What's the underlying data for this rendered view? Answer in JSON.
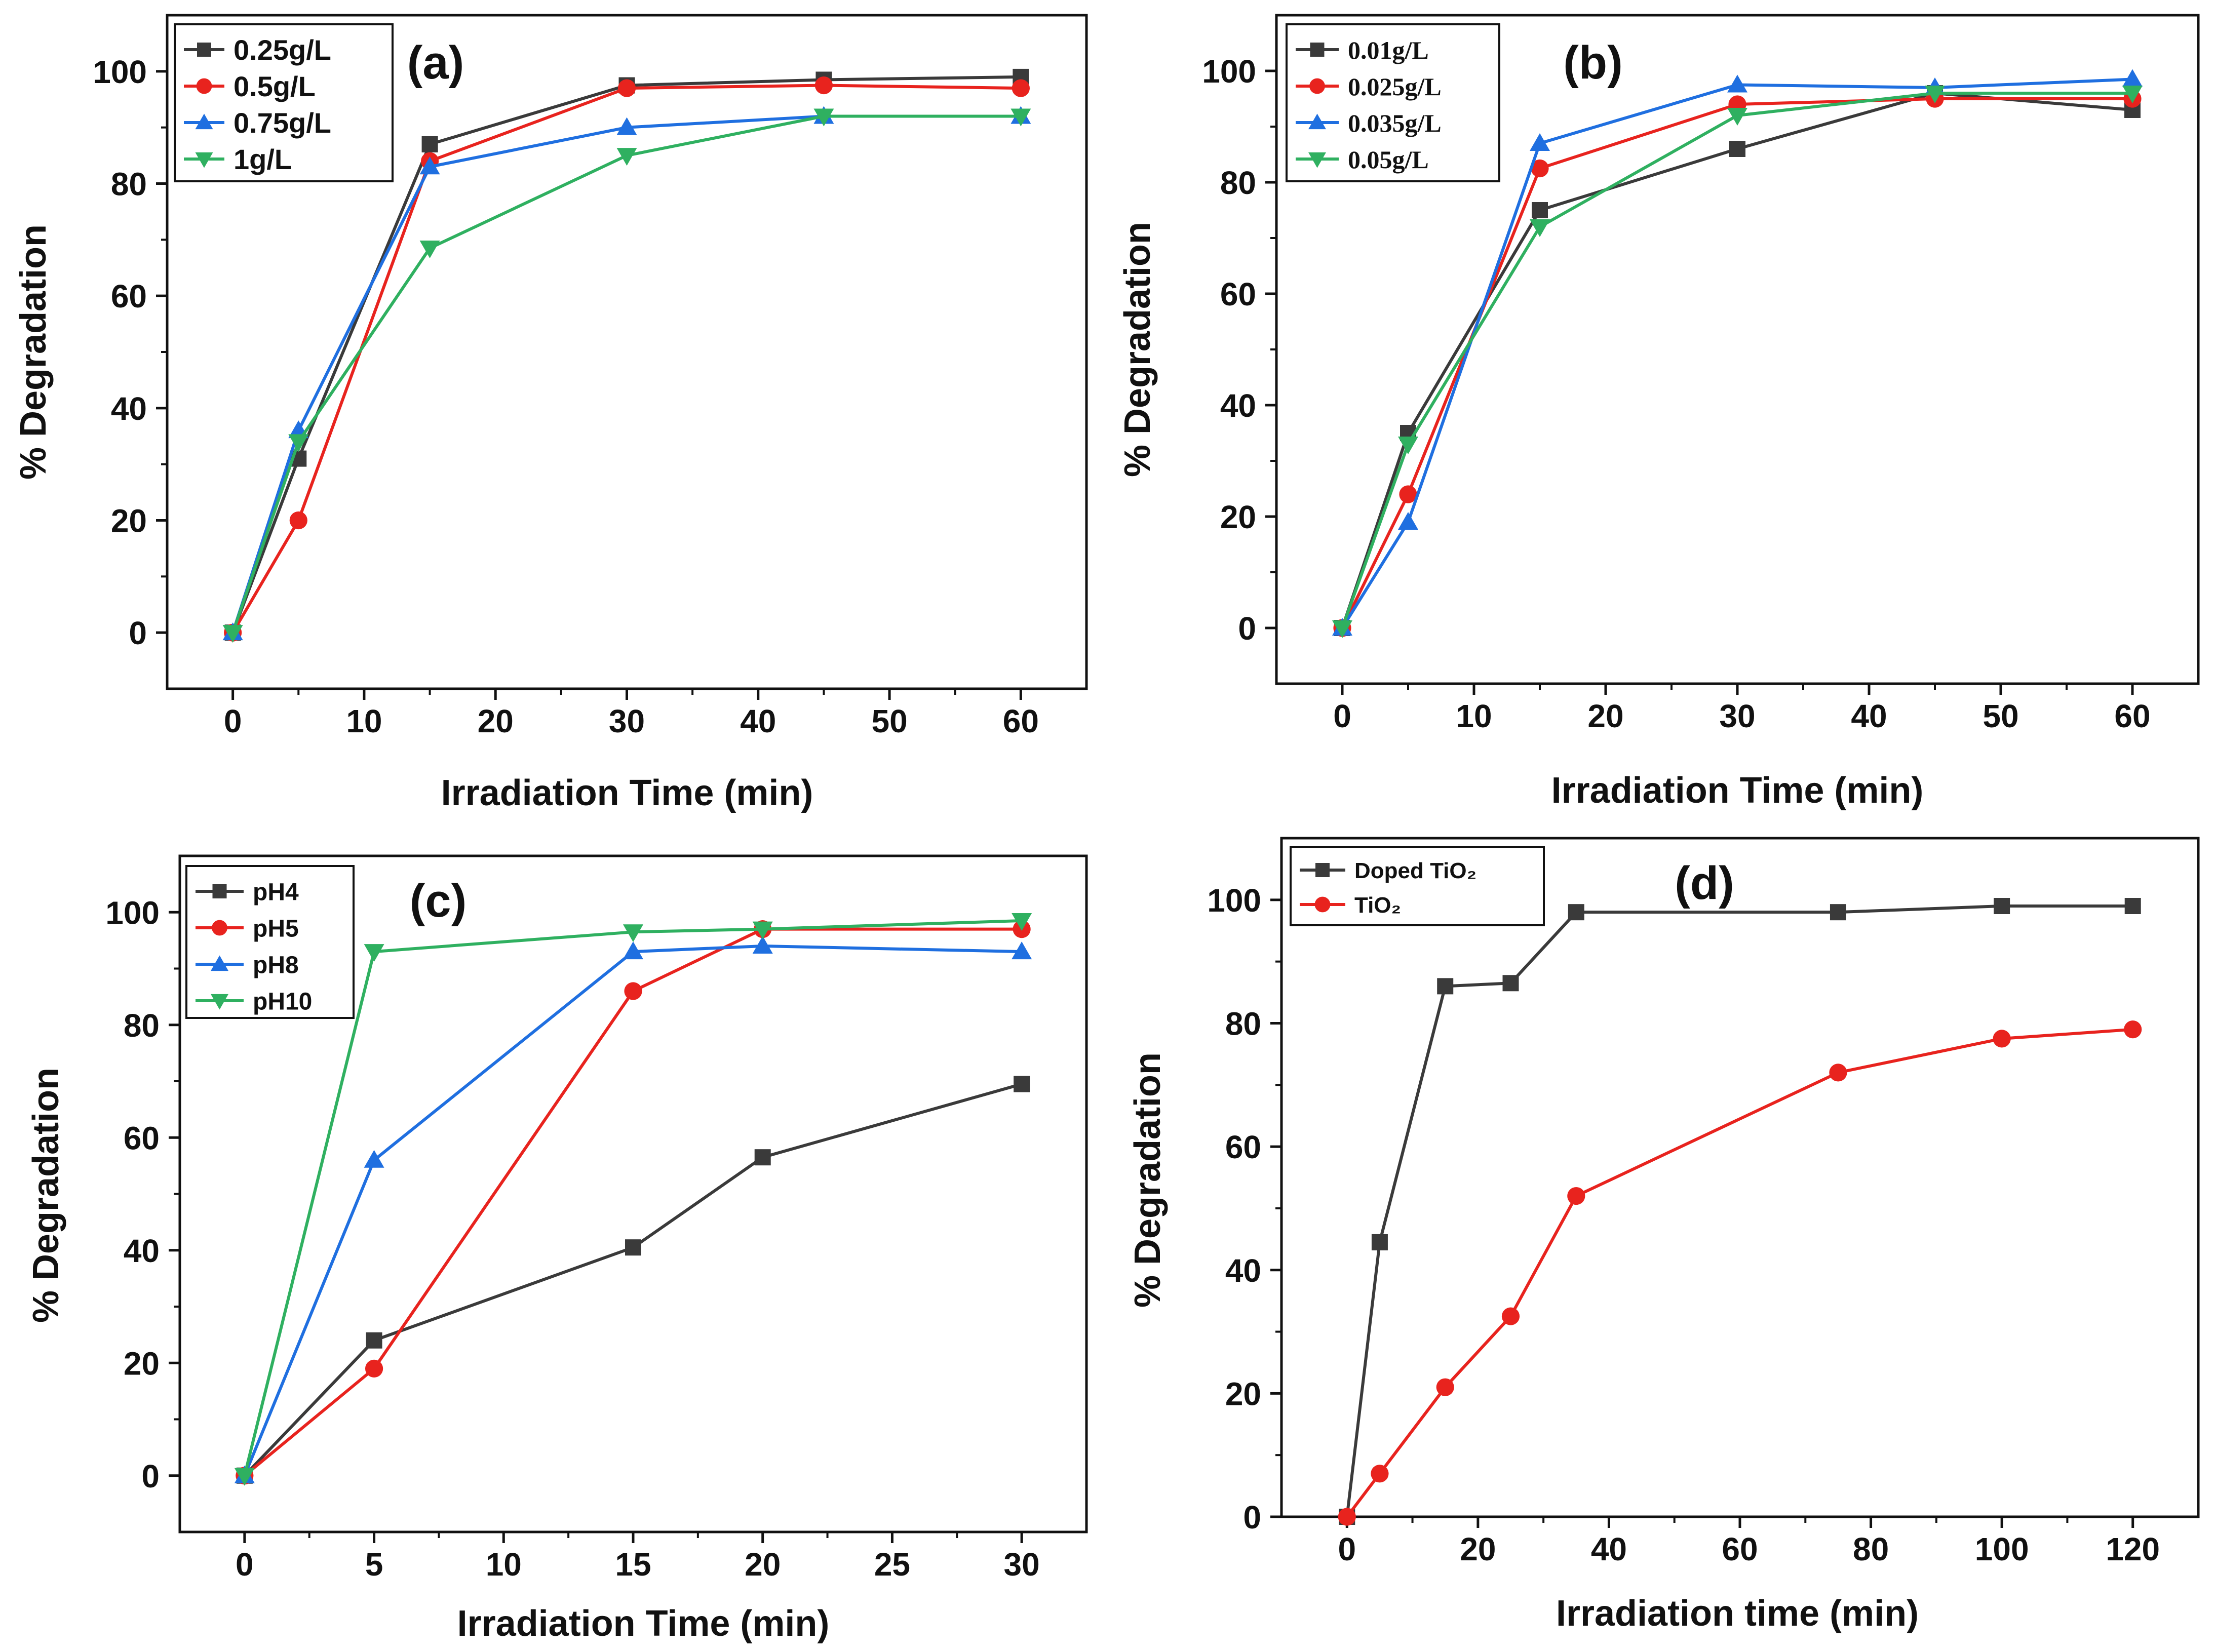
{
  "chart_data": [
    {
      "id": "a",
      "type": "line",
      "panel_label": "(a)",
      "xlabel": "Irradiation Time (min)",
      "ylabel": "% Degradation",
      "xlim": [
        -5,
        65
      ],
      "ylim": [
        -10,
        110
      ],
      "xticks": [
        0,
        10,
        20,
        30,
        40,
        50,
        60
      ],
      "yticks": [
        0,
        20,
        40,
        60,
        80,
        100
      ],
      "legend_position": "top-left",
      "legend_font": "sans",
      "series": [
        {
          "name": "0.25g/L",
          "color": "#3a3a3a",
          "marker": "square",
          "x": [
            0,
            5,
            15,
            30,
            45,
            60
          ],
          "y": [
            0,
            31,
            87,
            97.5,
            98.5,
            99
          ]
        },
        {
          "name": "0.5g/L",
          "color": "#e8231e",
          "marker": "circle",
          "x": [
            0,
            5,
            15,
            30,
            45,
            60
          ],
          "y": [
            0,
            20,
            84,
            97,
            97.5,
            97
          ]
        },
        {
          "name": "0.75g/L",
          "color": "#1f6fe0",
          "marker": "triangle-up",
          "x": [
            0,
            5,
            15,
            30,
            45,
            60
          ],
          "y": [
            0,
            36,
            83,
            90,
            92,
            92
          ]
        },
        {
          "name": "1g/L",
          "color": "#2fb060",
          "marker": "triangle-down",
          "x": [
            0,
            5,
            15,
            30,
            45,
            60
          ],
          "y": [
            0,
            34,
            68.5,
            85,
            92,
            92
          ]
        }
      ]
    },
    {
      "id": "b",
      "type": "line",
      "panel_label": "(b)",
      "xlabel": "Irradiation Time (min)",
      "ylabel": "% Degradation",
      "xlim": [
        -5,
        65
      ],
      "ylim": [
        -10,
        110
      ],
      "xticks": [
        0,
        10,
        20,
        30,
        40,
        50,
        60
      ],
      "yticks": [
        0,
        20,
        40,
        60,
        80,
        100
      ],
      "legend_position": "top-left",
      "legend_font": "serif",
      "series": [
        {
          "name": "0.01g/L",
          "color": "#3a3a3a",
          "marker": "square",
          "x": [
            0,
            5,
            15,
            30,
            45,
            60
          ],
          "y": [
            0,
            35,
            75,
            86,
            96,
            93
          ]
        },
        {
          "name": "0.025g/L",
          "color": "#e8231e",
          "marker": "circle",
          "x": [
            0,
            5,
            15,
            30,
            45,
            60
          ],
          "y": [
            0,
            24,
            82.5,
            94,
            95,
            95
          ]
        },
        {
          "name": "0.035g/L",
          "color": "#1f6fe0",
          "marker": "triangle-up",
          "x": [
            0,
            5,
            15,
            30,
            45,
            60
          ],
          "y": [
            0,
            19,
            87,
            97.5,
            97,
            98.5
          ]
        },
        {
          "name": "0.05g/L",
          "color": "#2fb060",
          "marker": "triangle-down",
          "x": [
            0,
            5,
            15,
            30,
            45,
            60
          ],
          "y": [
            0,
            33,
            72,
            92,
            96,
            96
          ]
        }
      ]
    },
    {
      "id": "c",
      "type": "line",
      "panel_label": "(c)",
      "xlabel": "Irradiation Time (min)",
      "ylabel": "% Degradation",
      "xlim": [
        -2.5,
        32.5
      ],
      "ylim": [
        -10,
        110
      ],
      "xticks": [
        0,
        5,
        10,
        15,
        20,
        25,
        30
      ],
      "yticks": [
        0,
        20,
        40,
        60,
        80,
        100
      ],
      "legend_position": "top-left",
      "legend_font": "sans",
      "series": [
        {
          "name": "pH4",
          "color": "#3a3a3a",
          "marker": "square",
          "x": [
            0,
            5,
            15,
            20,
            30
          ],
          "y": [
            0,
            24,
            40.5,
            56.5,
            69.5
          ]
        },
        {
          "name": "pH5",
          "color": "#e8231e",
          "marker": "circle",
          "x": [
            0,
            5,
            15,
            20,
            30
          ],
          "y": [
            0,
            19,
            86,
            97,
            97
          ]
        },
        {
          "name": "pH8",
          "color": "#1f6fe0",
          "marker": "triangle-up",
          "x": [
            0,
            5,
            15,
            20,
            30
          ],
          "y": [
            0,
            56,
            93,
            94,
            93
          ]
        },
        {
          "name": "pH10",
          "color": "#2fb060",
          "marker": "triangle-down",
          "x": [
            0,
            5,
            15,
            20,
            30
          ],
          "y": [
            0,
            93,
            96.5,
            97,
            98.5
          ]
        }
      ]
    },
    {
      "id": "d",
      "type": "line",
      "panel_label": "(d)",
      "xlabel": "Irradiation time (min)",
      "ylabel": "% Degradation",
      "xlim": [
        -10,
        130
      ],
      "ylim": [
        0,
        110
      ],
      "xticks": [
        0,
        20,
        40,
        60,
        80,
        100,
        120
      ],
      "yticks": [
        0,
        20,
        40,
        60,
        80,
        100
      ],
      "legend_position": "top-left",
      "legend_font": "sans",
      "series": [
        {
          "name": "Doped TiO₂",
          "color": "#3a3a3a",
          "marker": "square",
          "x": [
            0,
            5,
            15,
            25,
            35,
            75,
            100,
            120
          ],
          "y": [
            0,
            44.5,
            86,
            86.5,
            98,
            98,
            99,
            99
          ]
        },
        {
          "name": "TiO₂",
          "color": "#e8231e",
          "marker": "circle",
          "x": [
            0,
            5,
            15,
            25,
            35,
            75,
            100,
            120
          ],
          "y": [
            0,
            7,
            21,
            32.5,
            52,
            72,
            77.5,
            79
          ]
        }
      ]
    }
  ]
}
